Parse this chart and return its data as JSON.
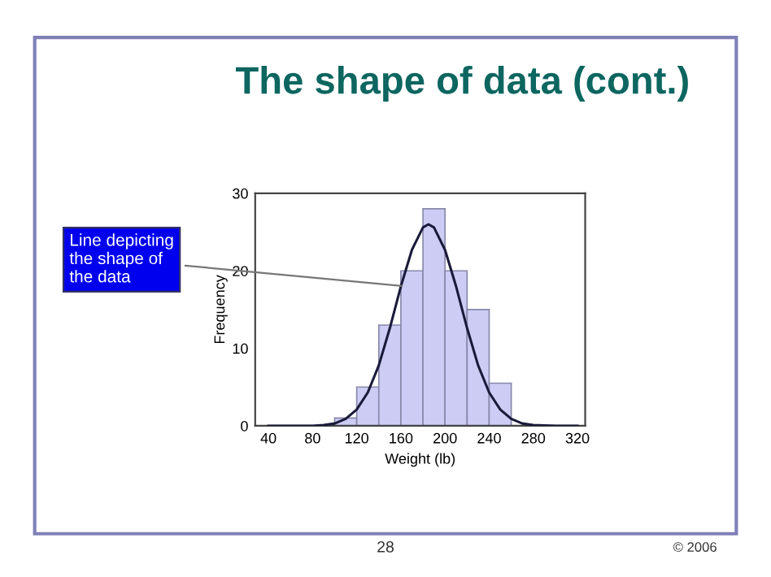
{
  "chart_data": {
    "type": "histogram",
    "title": "The shape of data (cont.)",
    "xlabel": "Weight (lb)",
    "ylabel": "Frequency",
    "bins": [
      100,
      120,
      140,
      160,
      180,
      200,
      220,
      240,
      260
    ],
    "values": [
      1,
      5,
      13,
      20,
      28,
      20,
      15,
      5.5
    ],
    "color": "#ccccf5",
    "series": [
      {
        "type": "line",
        "color": "#1a1a3a",
        "x": [
          40,
          60,
          80,
          90,
          100,
          110,
          120,
          130,
          140,
          150,
          160,
          170,
          180,
          185,
          190,
          200,
          210,
          220,
          230,
          240,
          250,
          260,
          270,
          280,
          300,
          320
        ],
        "values": [
          0,
          0,
          0,
          0.1,
          0.3,
          0.9,
          2.1,
          4.3,
          7.8,
          12.6,
          18.0,
          22.7,
          25.6,
          26,
          25.6,
          22.7,
          18.0,
          12.6,
          7.8,
          4.3,
          2.1,
          0.9,
          0.3,
          0.1,
          0,
          0
        ]
      }
    ],
    "xlim": [
      28,
      327
    ],
    "xticks": [
      40,
      80,
      120,
      160,
      200,
      240,
      280,
      320
    ],
    "ylim": [
      0,
      30
    ],
    "yticks": [
      0,
      10,
      20,
      30
    ],
    "grid": false,
    "legend": false,
    "annotations": [
      {
        "text": "Line depicting\nthe shape of\nthe data",
        "x": 165,
        "y": 18
      },
      "28",
      "© 2006"
    ]
  }
}
